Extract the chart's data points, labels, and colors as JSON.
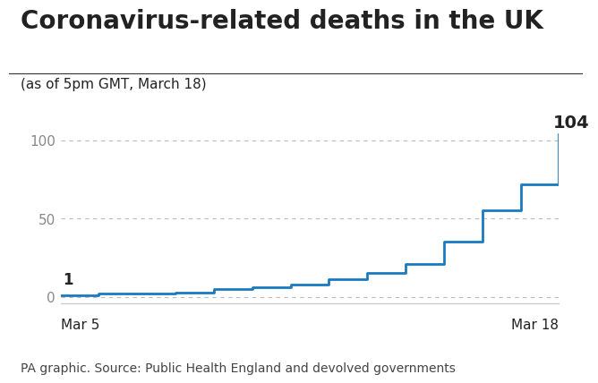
{
  "title": "Coronavirus-related deaths in the UK",
  "subtitle": "(as of 5pm GMT, March 18)",
  "source": "PA graphic. Source: Public Health England and devolved governments",
  "line_color": "#1a7abf",
  "background_color": "#ffffff",
  "dates": [
    5,
    6,
    7,
    8,
    9,
    10,
    11,
    12,
    13,
    14,
    15,
    16,
    17,
    18
  ],
  "deaths": [
    1,
    2,
    2,
    3,
    5,
    6,
    8,
    11,
    15,
    21,
    35,
    55,
    72,
    104
  ],
  "xlim_start": 5,
  "xlim_end": 18,
  "ylim_min": -4,
  "ylim_max": 115,
  "yticks": [
    0,
    50,
    100
  ],
  "first_label": "1",
  "last_label": "104",
  "xlabel_left": "Mar 5",
  "xlabel_right": "Mar 18",
  "title_fontsize": 20,
  "subtitle_fontsize": 11,
  "source_fontsize": 10,
  "ytick_fontsize": 11,
  "xlabel_fontsize": 11,
  "annot_fontsize": 12,
  "last_annot_fontsize": 14,
  "grid_color": "#bbbbbb",
  "tick_color": "#888888",
  "text_color": "#222222",
  "source_color": "#444444",
  "spine_color": "#cccccc",
  "separator_color": "#333333"
}
